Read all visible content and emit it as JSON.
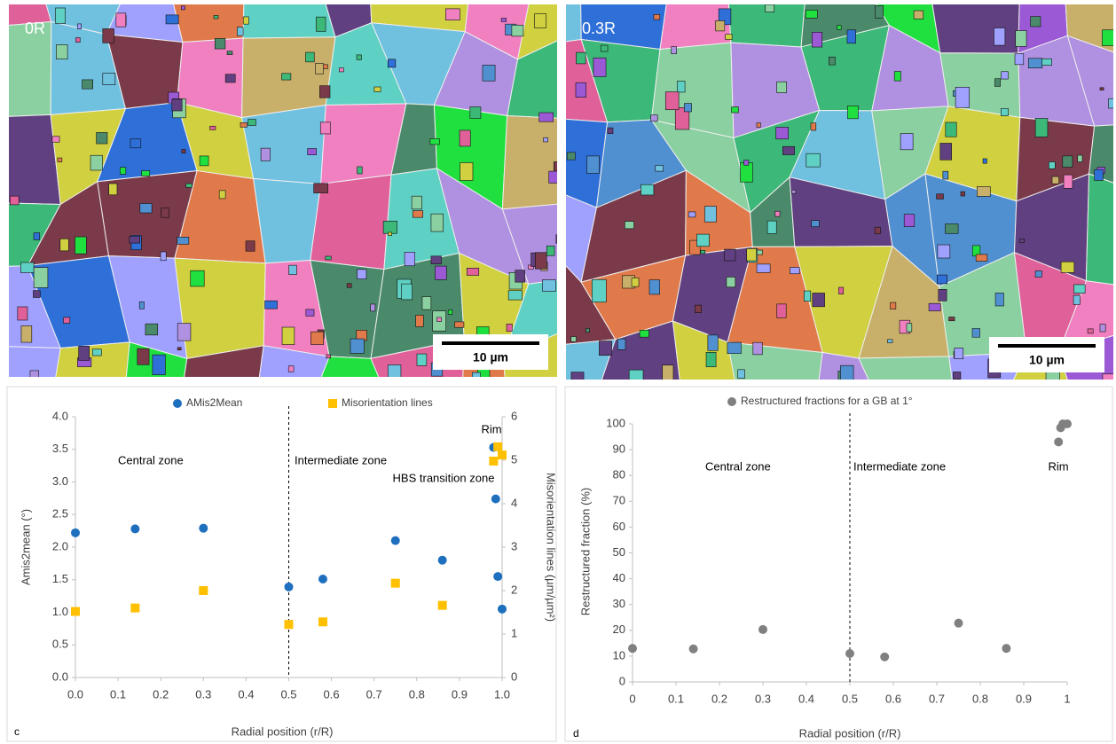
{
  "images": [
    {
      "label": "0R",
      "scale_bar": "10 µm"
    },
    {
      "label": "0.3R",
      "scale_bar": "10 µm"
    }
  ],
  "chart_data": [
    {
      "type": "scatter",
      "panel": "c",
      "xlabel": "Radial position (r/R)",
      "ylabel": "Amis2mean (°)",
      "y2label": "Misorientation lines (µm/µm²)",
      "xlim": [
        0,
        1
      ],
      "xticks": [
        {
          "value": 0,
          "label": "0.0"
        },
        0.1,
        0.2,
        0.3,
        0.4,
        0.5,
        0.6,
        0.7,
        0.8,
        0.9,
        {
          "value": 1,
          "label": "1.0"
        }
      ],
      "ylim": [
        0,
        4
      ],
      "yticks": [
        {
          "value": 0,
          "label": "0.0"
        },
        0.5,
        {
          "value": 1,
          "label": "1.0"
        },
        1.5,
        {
          "value": 2,
          "label": "2.0"
        },
        2.5,
        {
          "value": 3,
          "label": "3.0"
        },
        3.5,
        {
          "value": 4,
          "label": "4.0"
        }
      ],
      "y2lim": [
        0,
        6
      ],
      "y2ticks": [
        0,
        1,
        2,
        3,
        4,
        5,
        6
      ],
      "vlines": [
        0.5
      ],
      "grid": false,
      "legend": "top",
      "annotations": [
        "Central zone",
        "Intermediate zone",
        "Rim",
        "HBS transition zone"
      ],
      "series": [
        {
          "name": "AMis2Mean",
          "color": "#1f6fbf",
          "marker": "circle",
          "x": [
            0,
            0.14,
            0.3,
            0.5,
            0.58,
            0.75,
            0.86,
            0.98,
            0.985,
            0.99,
            1.0
          ],
          "values": [
            2.22,
            2.28,
            2.29,
            1.39,
            1.51,
            2.1,
            1.8,
            3.53,
            2.74,
            1.55,
            1.05
          ]
        },
        {
          "name": "Misorientation lines",
          "color": "#ffc000",
          "marker": "square",
          "axis": "y2",
          "x": [
            0,
            0.14,
            0.3,
            0.5,
            0.58,
            0.75,
            0.86,
            0.98,
            0.99,
            1.0
          ],
          "values": [
            1.52,
            1.6,
            2.0,
            1.22,
            1.28,
            2.17,
            1.66,
            4.98,
            5.31,
            5.12
          ]
        }
      ]
    },
    {
      "type": "scatter",
      "panel": "d",
      "xlabel": "Radial position (r/R)",
      "ylabel": "Restructured fraction (%)",
      "xlim": [
        0,
        1
      ],
      "xticks": [
        0,
        0.1,
        0.2,
        0.3,
        0.4,
        0.5,
        0.6,
        0.7,
        0.8,
        0.9,
        1
      ],
      "ylim": [
        0,
        100
      ],
      "yticks": [
        0,
        10,
        20,
        30,
        40,
        50,
        60,
        70,
        80,
        90,
        100
      ],
      "vlines": [
        0.5
      ],
      "grid": false,
      "legend": "top",
      "annotations": [
        "Central zone",
        "Intermediate zone",
        "Rim"
      ],
      "series": [
        {
          "name": "Restructured fractions for a GB at 1°",
          "color": "#808080",
          "marker": "circle",
          "x": [
            0,
            0.14,
            0.3,
            0.5,
            0.58,
            0.75,
            0.86,
            0.98,
            0.985,
            0.99,
            1.0
          ],
          "values": [
            13,
            12.8,
            20.3,
            11,
            9.7,
            22.8,
            13,
            93,
            98.5,
            100,
            100
          ]
        }
      ]
    }
  ]
}
